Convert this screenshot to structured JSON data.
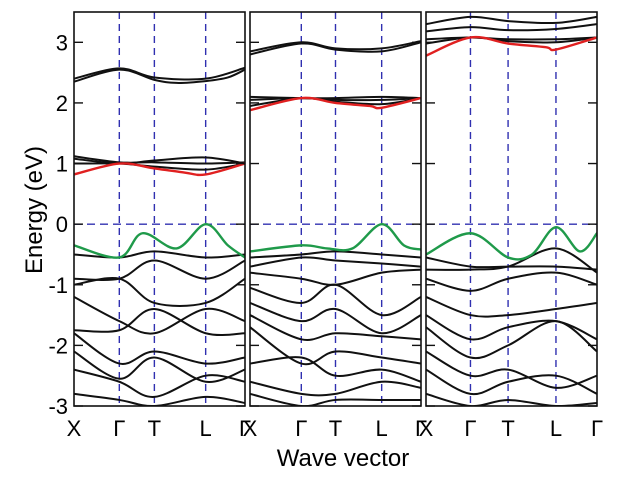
{
  "chart_data": {
    "type": "line",
    "title": "",
    "xlabel": "Wave vector",
    "ylabel": "Energy (eV)",
    "ylim": [
      -3,
      3.5
    ],
    "yticks": [
      -3,
      -2,
      -1,
      0,
      1,
      2,
      3
    ],
    "ytick_labels": [
      "-3",
      "-2",
      "-1",
      "0",
      "1",
      "2",
      "3"
    ],
    "grid": false,
    "legend": "none",
    "reference_line": {
      "y": 0,
      "style": "dashed",
      "color": "#3030b0"
    },
    "colors": {
      "band": "#111111",
      "conduction_band_edge": "#e02020",
      "valence_band_edge": "#1f9a4a",
      "symmetry_line": "#3030b0"
    },
    "panels": [
      {
        "k_points": [
          {
            "label": "X",
            "x": 0.0
          },
          {
            "label": "Γ",
            "x": 0.265
          },
          {
            "label": "T",
            "x": 0.47
          },
          {
            "label": "L",
            "x": 0.77
          },
          {
            "label": "Γ",
            "x": 1.0
          }
        ],
        "bands": [
          {
            "role": "conduction",
            "x": [
              0,
              0.265,
              0.47,
              0.6,
              0.77,
              0.9,
              1.0
            ],
            "y": [
              2.35,
              2.55,
              2.38,
              2.33,
              2.36,
              2.42,
              2.55
            ]
          },
          {
            "role": "conduction",
            "x": [
              0,
              0.265,
              0.47,
              0.77,
              1.0
            ],
            "y": [
              2.4,
              2.57,
              2.42,
              2.4,
              2.58
            ]
          },
          {
            "role": "conduction",
            "x": [
              0,
              0.265,
              0.47,
              0.77,
              1.0
            ],
            "y": [
              1.08,
              1.0,
              1.05,
              1.1,
              1.0
            ]
          },
          {
            "role": "conduction",
            "x": [
              0,
              0.265,
              0.47,
              0.77,
              1.0
            ],
            "y": [
              1.12,
              1.02,
              1.02,
              1.0,
              1.02
            ]
          },
          {
            "role": "conduction",
            "x": [
              0,
              0.265,
              0.47,
              0.77,
              1.0
            ],
            "y": [
              1.0,
              1.0,
              0.95,
              0.9,
              1.0
            ]
          },
          {
            "role": "conduction_edge",
            "x": [
              0,
              0.265,
              0.47,
              0.65,
              0.77,
              1.0
            ],
            "y": [
              0.82,
              1.0,
              0.92,
              0.85,
              0.82,
              1.0
            ]
          },
          {
            "role": "valence_edge",
            "x": [
              0,
              0.265,
              0.4,
              0.6,
              0.77,
              0.9,
              1.0
            ],
            "y": [
              -0.35,
              -0.55,
              -0.15,
              -0.4,
              0.0,
              -0.35,
              -0.55
            ]
          },
          {
            "role": "valence",
            "x": [
              0,
              0.265,
              0.47,
              0.77,
              1.0
            ],
            "y": [
              -0.5,
              -0.55,
              -0.45,
              -0.55,
              -0.5
            ]
          },
          {
            "role": "valence",
            "x": [
              0,
              0.265,
              0.47,
              0.77,
              1.0
            ],
            "y": [
              -0.9,
              -0.9,
              -0.6,
              -0.9,
              -0.6
            ]
          },
          {
            "role": "valence",
            "x": [
              0,
              0.265,
              0.47,
              0.77,
              1.0
            ],
            "y": [
              -1.0,
              -0.9,
              -1.3,
              -1.3,
              -0.9
            ]
          },
          {
            "role": "valence",
            "x": [
              0,
              0.265,
              0.47,
              0.77,
              1.0
            ],
            "y": [
              -1.2,
              -1.6,
              -1.8,
              -1.4,
              -1.6
            ]
          },
          {
            "role": "valence",
            "x": [
              0,
              0.265,
              0.47,
              0.77,
              1.0
            ],
            "y": [
              -1.75,
              -1.75,
              -1.4,
              -1.8,
              -1.8
            ]
          },
          {
            "role": "valence",
            "x": [
              0,
              0.265,
              0.47,
              0.77,
              1.0
            ],
            "y": [
              -1.8,
              -2.3,
              -2.1,
              -2.3,
              -2.2
            ]
          },
          {
            "role": "valence",
            "x": [
              0,
              0.265,
              0.47,
              0.77,
              1.0
            ],
            "y": [
              -2.1,
              -2.55,
              -2.2,
              -2.6,
              -2.4
            ]
          },
          {
            "role": "valence",
            "x": [
              0,
              0.265,
              0.47,
              0.77,
              1.0
            ],
            "y": [
              -2.4,
              -2.6,
              -2.85,
              -2.5,
              -2.6
            ]
          },
          {
            "role": "valence",
            "x": [
              0,
              0.265,
              0.47,
              0.77,
              1.0
            ],
            "y": [
              -2.8,
              -2.9,
              -3.0,
              -2.85,
              -2.95
            ]
          }
        ]
      },
      {
        "k_points": [
          {
            "label": "X",
            "x": 0.0
          },
          {
            "label": "Γ",
            "x": 0.3
          },
          {
            "label": "T",
            "x": 0.5
          },
          {
            "label": "L",
            "x": 0.77
          },
          {
            "label": "Γ",
            "x": 1.0
          }
        ],
        "bands": [
          {
            "role": "conduction",
            "x": [
              0,
              0.3,
              0.5,
              0.77,
              1.0
            ],
            "y": [
              2.8,
              2.98,
              2.88,
              2.85,
              3.0
            ]
          },
          {
            "role": "conduction",
            "x": [
              0,
              0.3,
              0.5,
              0.77,
              1.0
            ],
            "y": [
              2.85,
              3.0,
              2.9,
              2.9,
              3.02
            ]
          },
          {
            "role": "conduction",
            "x": [
              0,
              0.3,
              0.5,
              0.77,
              1.0
            ],
            "y": [
              2.1,
              2.08,
              2.08,
              2.1,
              2.08
            ]
          },
          {
            "role": "conduction",
            "x": [
              0,
              0.3,
              0.5,
              0.77,
              1.0
            ],
            "y": [
              2.05,
              2.08,
              2.05,
              2.05,
              2.08
            ]
          },
          {
            "role": "conduction",
            "x": [
              0,
              0.3,
              0.5,
              0.77,
              1.0
            ],
            "y": [
              1.95,
              2.08,
              2.02,
              1.98,
              2.08
            ]
          },
          {
            "role": "conduction_edge",
            "x": [
              0,
              0.3,
              0.5,
              0.7,
              0.77,
              1.0
            ],
            "y": [
              1.88,
              2.08,
              2.0,
              1.95,
              1.92,
              2.08
            ]
          },
          {
            "role": "valence_edge",
            "x": [
              0,
              0.3,
              0.45,
              0.6,
              0.77,
              0.9,
              1.0
            ],
            "y": [
              -0.45,
              -0.35,
              -0.4,
              -0.4,
              0.0,
              -0.35,
              -0.42
            ]
          },
          {
            "role": "valence",
            "x": [
              0,
              0.3,
              0.5,
              0.77,
              1.0
            ],
            "y": [
              -0.55,
              -0.5,
              -0.45,
              -0.5,
              -0.55
            ]
          },
          {
            "role": "valence",
            "x": [
              0,
              0.3,
              0.5,
              0.77,
              1.0
            ],
            "y": [
              -0.7,
              -0.55,
              -0.6,
              -0.65,
              -0.7
            ]
          },
          {
            "role": "valence",
            "x": [
              0,
              0.3,
              0.5,
              0.77,
              1.0
            ],
            "y": [
              -0.8,
              -0.9,
              -1.0,
              -0.8,
              -0.75
            ]
          },
          {
            "role": "valence",
            "x": [
              0,
              0.3,
              0.5,
              0.77,
              1.0
            ],
            "y": [
              -1.05,
              -1.3,
              -1.0,
              -1.5,
              -1.2
            ]
          },
          {
            "role": "valence",
            "x": [
              0,
              0.3,
              0.5,
              0.77,
              1.0
            ],
            "y": [
              -1.3,
              -1.6,
              -1.4,
              -1.8,
              -1.5
            ]
          },
          {
            "role": "valence",
            "x": [
              0,
              0.3,
              0.5,
              0.77,
              1.0
            ],
            "y": [
              -1.5,
              -1.9,
              -1.8,
              -1.85,
              -1.9
            ]
          },
          {
            "role": "valence",
            "x": [
              0,
              0.3,
              0.5,
              0.77,
              1.0
            ],
            "y": [
              -1.7,
              -2.3,
              -2.1,
              -2.2,
              -2.3
            ]
          },
          {
            "role": "valence",
            "x": [
              0,
              0.3,
              0.5,
              0.77,
              1.0
            ],
            "y": [
              -2.3,
              -2.2,
              -2.5,
              -2.4,
              -2.6
            ]
          },
          {
            "role": "valence",
            "x": [
              0,
              0.3,
              0.5,
              0.77,
              1.0
            ],
            "y": [
              -2.6,
              -2.8,
              -2.8,
              -2.6,
              -2.7
            ]
          },
          {
            "role": "valence",
            "x": [
              0,
              0.3,
              0.5,
              0.77,
              1.0
            ],
            "y": [
              -2.8,
              -3.0,
              -2.9,
              -2.9,
              -2.9
            ]
          }
        ]
      },
      {
        "k_points": [
          {
            "label": "X",
            "x": 0.0
          },
          {
            "label": "Γ",
            "x": 0.26
          },
          {
            "label": "T",
            "x": 0.48
          },
          {
            "label": "L",
            "x": 0.76
          },
          {
            "label": "Γ",
            "x": 1.0
          }
        ],
        "bands": [
          {
            "role": "conduction",
            "x": [
              0,
              0.26,
              0.48,
              0.76,
              1.0
            ],
            "y": [
              3.3,
              3.42,
              3.35,
              3.32,
              3.42
            ]
          },
          {
            "role": "conduction",
            "x": [
              0,
              0.26,
              0.48,
              0.76,
              1.0
            ],
            "y": [
              3.18,
              3.25,
              3.2,
              3.22,
              3.3
            ]
          },
          {
            "role": "conduction",
            "x": [
              0,
              0.26,
              0.48,
              0.76,
              1.0
            ],
            "y": [
              3.05,
              3.08,
              3.05,
              3.05,
              3.08
            ]
          },
          {
            "role": "conduction",
            "x": [
              0,
              0.26,
              0.48,
              0.76,
              1.0
            ],
            "y": [
              2.98,
              3.08,
              3.02,
              3.0,
              3.08
            ]
          },
          {
            "role": "conduction_edge",
            "x": [
              0,
              0.26,
              0.48,
              0.7,
              0.76,
              1.0
            ],
            "y": [
              2.78,
              3.08,
              2.98,
              2.92,
              2.88,
              3.08
            ]
          },
          {
            "role": "valence_edge",
            "x": [
              0,
              0.26,
              0.48,
              0.62,
              0.76,
              0.9,
              1.0
            ],
            "y": [
              -0.5,
              -0.15,
              -0.55,
              -0.5,
              -0.05,
              -0.45,
              -0.15
            ]
          },
          {
            "role": "valence",
            "x": [
              0,
              0.26,
              0.48,
              0.76,
              1.0
            ],
            "y": [
              -0.55,
              -0.7,
              -0.7,
              -0.7,
              -0.75
            ]
          },
          {
            "role": "valence",
            "x": [
              0,
              0.26,
              0.48,
              0.76,
              1.0
            ],
            "y": [
              -0.75,
              -0.75,
              -0.7,
              -0.4,
              -0.8
            ]
          },
          {
            "role": "valence",
            "x": [
              0,
              0.26,
              0.48,
              0.76,
              1.0
            ],
            "y": [
              -0.9,
              -1.1,
              -0.9,
              -0.8,
              -1.0
            ]
          },
          {
            "role": "valence",
            "x": [
              0,
              0.26,
              0.48,
              0.76,
              1.0
            ],
            "y": [
              -1.2,
              -1.5,
              -1.5,
              -1.4,
              -1.3
            ]
          },
          {
            "role": "valence",
            "x": [
              0,
              0.26,
              0.48,
              0.76,
              1.0
            ],
            "y": [
              -1.5,
              -1.9,
              -1.7,
              -1.6,
              -1.9
            ]
          },
          {
            "role": "valence",
            "x": [
              0,
              0.26,
              0.48,
              0.76,
              1.0
            ],
            "y": [
              -1.7,
              -2.2,
              -2.0,
              -1.6,
              -2.1
            ]
          },
          {
            "role": "valence",
            "x": [
              0,
              0.26,
              0.48,
              0.76,
              1.0
            ],
            "y": [
              -2.1,
              -2.5,
              -2.4,
              -2.7,
              -2.5
            ]
          },
          {
            "role": "valence",
            "x": [
              0,
              0.26,
              0.48,
              0.76,
              1.0
            ],
            "y": [
              -2.4,
              -2.8,
              -2.6,
              -2.5,
              -2.8
            ]
          },
          {
            "role": "valence",
            "x": [
              0,
              0.26,
              0.48,
              0.76,
              1.0
            ],
            "y": [
              -2.8,
              -3.0,
              -2.9,
              -3.0,
              -2.95
            ]
          }
        ]
      }
    ]
  }
}
